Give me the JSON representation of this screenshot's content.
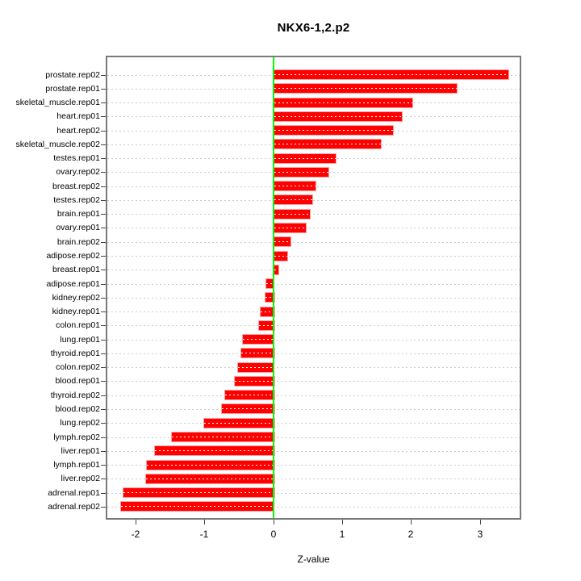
{
  "title": "NKX6-1,2.p2",
  "xlabel": "Z-value",
  "chart_data": {
    "type": "bar",
    "orientation": "horizontal",
    "title": "NKX6-1,2.p2",
    "xlabel": "Z-value",
    "categories": [
      "prostate.rep02",
      "prostate.rep01",
      "skeletal_muscle.rep01",
      "heart.rep01",
      "heart.rep02",
      "skeletal_muscle.rep02",
      "testes.rep01",
      "ovary.rep02",
      "breast.rep02",
      "testes.rep02",
      "brain.rep01",
      "ovary.rep01",
      "brain.rep02",
      "adipose.rep02",
      "breast.rep01",
      "adipose.rep01",
      "kidney.rep02",
      "kidney.rep01",
      "colon.rep01",
      "lung.rep01",
      "thyroid.rep01",
      "colon.rep02",
      "blood.rep01",
      "thyroid.rep02",
      "blood.rep02",
      "lung.rep02",
      "lymph.rep02",
      "liver.rep01",
      "lymph.rep01",
      "liver.rep02",
      "adrenal.rep01",
      "adrenal.rep02"
    ],
    "values": [
      3.4,
      2.65,
      2.0,
      1.85,
      1.72,
      1.55,
      0.89,
      0.79,
      0.6,
      0.55,
      0.51,
      0.46,
      0.24,
      0.19,
      0.06,
      -0.11,
      -0.13,
      -0.2,
      -0.22,
      -0.45,
      -0.48,
      -0.52,
      -0.57,
      -0.71,
      -0.76,
      -1.02,
      -1.49,
      -1.73,
      -1.85,
      -1.86,
      -2.19,
      -2.22
    ],
    "xticks": [
      -2,
      -1,
      0,
      1,
      2,
      3
    ],
    "xlim": [
      -2.43,
      3.62
    ],
    "grid": "dotted-horizontal",
    "legend": "none",
    "colors": {
      "bar": "#ff0000",
      "bar_border": "#ffa0a0",
      "bar_centerline": "#ffffff",
      "zero_line": "#00ff00",
      "gridline": "#cbcbcb",
      "plot_border": "#7a7a7a",
      "tick": "#444444",
      "text": "#000000",
      "background": "#ffffff"
    }
  }
}
